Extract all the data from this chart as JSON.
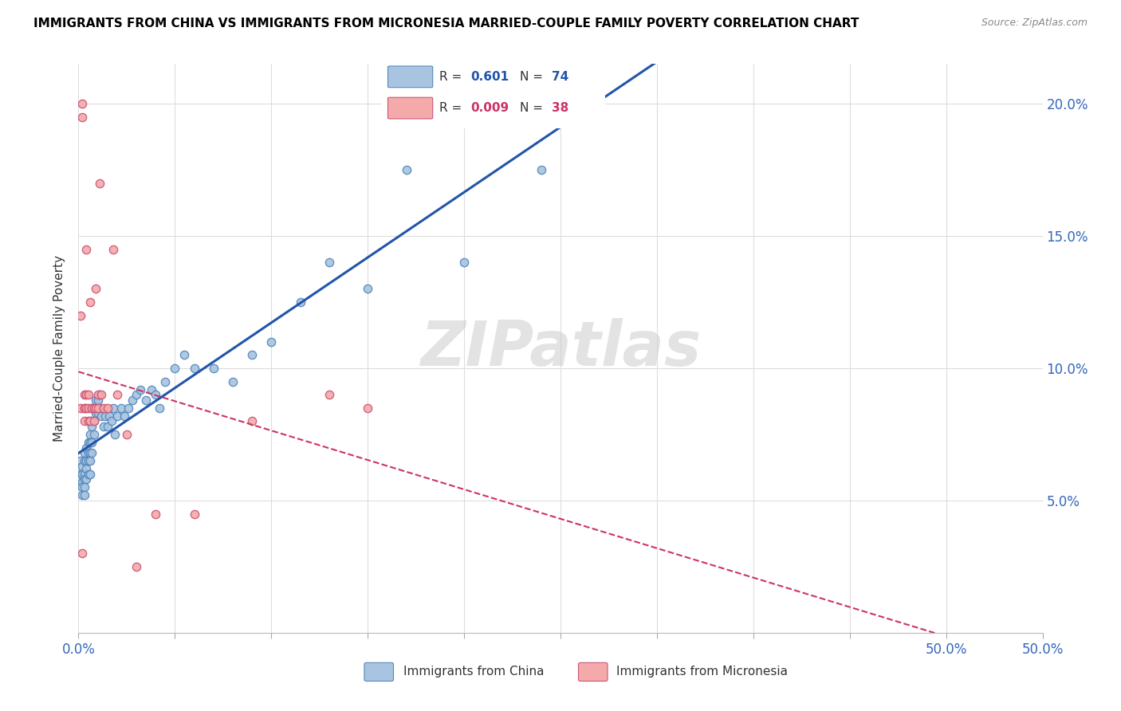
{
  "title": "IMMIGRANTS FROM CHINA VS IMMIGRANTS FROM MICRONESIA MARRIED-COUPLE FAMILY POVERTY CORRELATION CHART",
  "source": "Source: ZipAtlas.com",
  "ylabel": "Married-Couple Family Poverty",
  "xlim": [
    0.0,
    0.5
  ],
  "ylim": [
    0.0,
    0.215
  ],
  "xticks": [
    0.0,
    0.05,
    0.1,
    0.15,
    0.2,
    0.25,
    0.3,
    0.35,
    0.4,
    0.45,
    0.5
  ],
  "xtick_labels_show": {
    "0.0": "0.0%",
    "0.5": "50.0%"
  },
  "yticks": [
    0.0,
    0.05,
    0.1,
    0.15,
    0.2
  ],
  "ytick_labels": [
    "",
    "5.0%",
    "10.0%",
    "15.0%",
    "20.0%"
  ],
  "china_color": "#A8C4E0",
  "china_edge_color": "#5588BB",
  "micronesia_color": "#F4AAAA",
  "micronesia_edge_color": "#CC5577",
  "china_trend_color": "#2255AA",
  "micronesia_trend_color": "#CC3366",
  "watermark": "ZIPatlas",
  "legend_china_r": "0.601",
  "legend_china_n": "74",
  "legend_micronesia_r": "0.009",
  "legend_micronesia_n": "38",
  "china_x": [
    0.001,
    0.001,
    0.001,
    0.002,
    0.002,
    0.002,
    0.002,
    0.002,
    0.003,
    0.003,
    0.003,
    0.003,
    0.003,
    0.003,
    0.004,
    0.004,
    0.004,
    0.004,
    0.005,
    0.005,
    0.005,
    0.005,
    0.006,
    0.006,
    0.006,
    0.006,
    0.006,
    0.007,
    0.007,
    0.007,
    0.007,
    0.008,
    0.008,
    0.008,
    0.009,
    0.009,
    0.01,
    0.01,
    0.011,
    0.011,
    0.012,
    0.013,
    0.014,
    0.015,
    0.016,
    0.017,
    0.018,
    0.019,
    0.02,
    0.022,
    0.024,
    0.026,
    0.028,
    0.03,
    0.032,
    0.035,
    0.038,
    0.04,
    0.042,
    0.045,
    0.05,
    0.055,
    0.06,
    0.07,
    0.08,
    0.09,
    0.1,
    0.115,
    0.13,
    0.15,
    0.17,
    0.2,
    0.24,
    0.26
  ],
  "china_y": [
    0.065,
    0.06,
    0.058,
    0.063,
    0.06,
    0.057,
    0.055,
    0.052,
    0.068,
    0.065,
    0.06,
    0.058,
    0.055,
    0.052,
    0.07,
    0.065,
    0.062,
    0.058,
    0.072,
    0.068,
    0.065,
    0.06,
    0.075,
    0.072,
    0.068,
    0.065,
    0.06,
    0.08,
    0.078,
    0.072,
    0.068,
    0.085,
    0.08,
    0.075,
    0.088,
    0.083,
    0.088,
    0.083,
    0.09,
    0.085,
    0.082,
    0.078,
    0.082,
    0.078,
    0.082,
    0.08,
    0.085,
    0.075,
    0.082,
    0.085,
    0.082,
    0.085,
    0.088,
    0.09,
    0.092,
    0.088,
    0.092,
    0.09,
    0.085,
    0.095,
    0.1,
    0.105,
    0.1,
    0.1,
    0.095,
    0.105,
    0.11,
    0.125,
    0.14,
    0.13,
    0.175,
    0.14,
    0.175,
    0.21
  ],
  "micronesia_x": [
    0.001,
    0.001,
    0.002,
    0.002,
    0.002,
    0.003,
    0.003,
    0.003,
    0.003,
    0.004,
    0.004,
    0.004,
    0.005,
    0.005,
    0.005,
    0.006,
    0.006,
    0.007,
    0.007,
    0.008,
    0.008,
    0.009,
    0.009,
    0.01,
    0.01,
    0.011,
    0.012,
    0.013,
    0.015,
    0.018,
    0.02,
    0.025,
    0.03,
    0.04,
    0.06,
    0.09,
    0.13,
    0.15
  ],
  "micronesia_y": [
    0.12,
    0.085,
    0.195,
    0.2,
    0.03,
    0.09,
    0.085,
    0.08,
    0.085,
    0.09,
    0.085,
    0.145,
    0.09,
    0.085,
    0.08,
    0.08,
    0.125,
    0.085,
    0.085,
    0.085,
    0.08,
    0.085,
    0.13,
    0.09,
    0.085,
    0.17,
    0.09,
    0.085,
    0.085,
    0.145,
    0.09,
    0.075,
    0.025,
    0.045,
    0.045,
    0.08,
    0.09,
    0.085
  ]
}
